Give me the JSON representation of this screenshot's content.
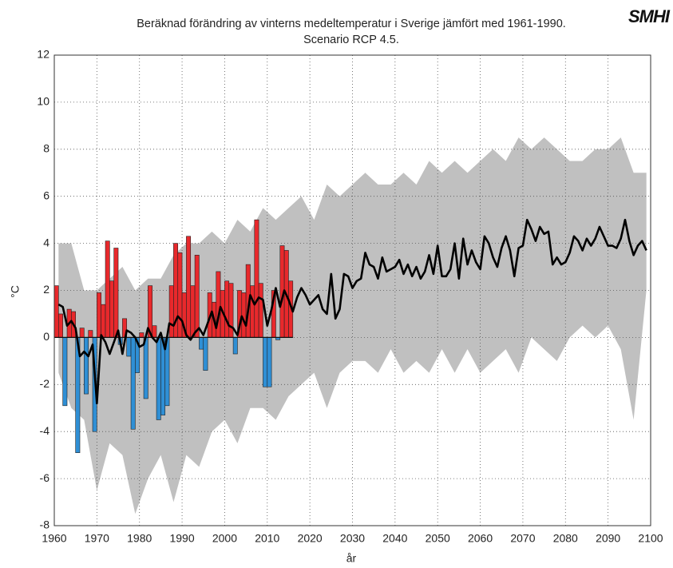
{
  "chart_data": {
    "type": "bar",
    "title": "Beräknad förändring av vinterns medeltemperatur i Sverige jämfört med 1961-1990.",
    "subtitle": "Scenario RCP 4.5.",
    "logo": "SMHI",
    "xlabel": "år",
    "ylabel": "°C",
    "xlim": [
      1960,
      2100
    ],
    "xticks": [
      1960,
      1970,
      1980,
      1990,
      2000,
      2010,
      2020,
      2030,
      2040,
      2050,
      2060,
      2070,
      2080,
      2090,
      2100
    ],
    "ylim": [
      -8,
      12
    ],
    "yticks": [
      -8,
      -6,
      -4,
      -2,
      0,
      2,
      4,
      6,
      8,
      10,
      12
    ],
    "grid": true,
    "bars": {
      "positive_color": "#e8292c",
      "negative_color": "#2f8fd5",
      "x": [
        1961,
        1962,
        1963,
        1964,
        1965,
        1966,
        1967,
        1968,
        1969,
        1970,
        1971,
        1972,
        1973,
        1974,
        1975,
        1976,
        1977,
        1978,
        1979,
        1980,
        1981,
        1982,
        1983,
        1984,
        1985,
        1986,
        1987,
        1988,
        1989,
        1990,
        1991,
        1992,
        1993,
        1994,
        1995,
        1996,
        1997,
        1998,
        1999,
        2000,
        2001,
        2002,
        2003,
        2004,
        2005,
        2006,
        2007,
        2008,
        2009,
        2010,
        2011,
        2012,
        2013,
        2014,
        2015,
        2016
      ],
      "values": [
        2.2,
        1.0,
        -2.9,
        1.2,
        1.1,
        -4.9,
        0.4,
        -2.4,
        0.3,
        -4.0,
        1.9,
        1.4,
        4.1,
        2.4,
        3.8,
        -0.3,
        0.8,
        -0.8,
        -3.9,
        -1.5,
        0.2,
        -2.6,
        2.2,
        0.5,
        -3.5,
        -3.3,
        -2.9,
        2.2,
        4.0,
        3.6,
        1.9,
        4.3,
        2.2,
        3.5,
        -0.5,
        -1.4,
        1.9,
        1.5,
        2.8,
        2.0,
        2.4,
        2.3,
        -0.7,
        2.0,
        1.9,
        3.1,
        2.2,
        5.0,
        2.3,
        -2.1,
        -2.1,
        2.0,
        -0.1,
        3.9,
        3.7,
        2.4
      ]
    },
    "band": {
      "color": "#c0c0c0",
      "x": [
        1961,
        1964,
        1967,
        1970,
        1973,
        1976,
        1979,
        1982,
        1985,
        1988,
        1991,
        1994,
        1997,
        2000,
        2003,
        2006,
        2009,
        2012,
        2015,
        2018,
        2021,
        2024,
        2027,
        2030,
        2033,
        2036,
        2039,
        2042,
        2045,
        2048,
        2051,
        2054,
        2057,
        2060,
        2063,
        2066,
        2069,
        2072,
        2075,
        2078,
        2081,
        2084,
        2087,
        2090,
        2093,
        2096,
        2099
      ],
      "upper": [
        4.0,
        4.0,
        2.0,
        2.0,
        2.5,
        3.0,
        2.0,
        2.5,
        2.5,
        3.5,
        4.0,
        4.0,
        4.5,
        4.0,
        5.0,
        4.5,
        5.5,
        5.0,
        5.5,
        6.0,
        5.0,
        6.5,
        6.0,
        6.5,
        7.0,
        6.5,
        6.5,
        7.0,
        6.5,
        7.5,
        7.0,
        7.5,
        7.0,
        7.5,
        8.0,
        7.5,
        8.5,
        8.0,
        8.5,
        8.0,
        7.5,
        7.5,
        8.0,
        8.0,
        8.5,
        7.0,
        7.0
      ],
      "lower": [
        -1.5,
        -3.0,
        -3.5,
        -6.5,
        -4.5,
        -5.0,
        -7.5,
        -6.0,
        -5.0,
        -7.0,
        -5.0,
        -5.5,
        -4.0,
        -3.5,
        -4.5,
        -3.0,
        -3.0,
        -3.5,
        -2.5,
        -2.0,
        -1.5,
        -3.0,
        -1.5,
        -1.0,
        -1.0,
        -1.5,
        -0.5,
        -1.5,
        -1.0,
        -1.5,
        -0.5,
        -1.5,
        -0.5,
        -1.5,
        -1.0,
        -0.5,
        -1.5,
        0.0,
        -0.5,
        -1.0,
        0.0,
        0.5,
        0.0,
        0.5,
        -0.5,
        -3.5,
        2.0
      ]
    },
    "line": {
      "color": "#000000",
      "x": [
        1961,
        1962,
        1963,
        1964,
        1965,
        1966,
        1967,
        1968,
        1969,
        1970,
        1971,
        1972,
        1973,
        1974,
        1975,
        1976,
        1977,
        1978,
        1979,
        1980,
        1981,
        1982,
        1983,
        1984,
        1985,
        1986,
        1987,
        1988,
        1989,
        1990,
        1991,
        1992,
        1993,
        1994,
        1995,
        1996,
        1997,
        1998,
        1999,
        2000,
        2001,
        2002,
        2003,
        2004,
        2005,
        2006,
        2007,
        2008,
        2009,
        2010,
        2011,
        2012,
        2013,
        2014,
        2015,
        2016,
        2017,
        2018,
        2019,
        2020,
        2021,
        2022,
        2023,
        2024,
        2025,
        2026,
        2027,
        2028,
        2029,
        2030,
        2031,
        2032,
        2033,
        2034,
        2035,
        2036,
        2037,
        2038,
        2039,
        2040,
        2041,
        2042,
        2043,
        2044,
        2045,
        2046,
        2047,
        2048,
        2049,
        2050,
        2051,
        2052,
        2053,
        2054,
        2055,
        2056,
        2057,
        2058,
        2059,
        2060,
        2061,
        2062,
        2063,
        2064,
        2065,
        2066,
        2067,
        2068,
        2069,
        2070,
        2071,
        2072,
        2073,
        2074,
        2075,
        2076,
        2077,
        2078,
        2079,
        2080,
        2081,
        2082,
        2083,
        2084,
        2085,
        2086,
        2087,
        2088,
        2089,
        2090,
        2091,
        2092,
        2093,
        2094,
        2095,
        2096,
        2097,
        2098,
        2099
      ],
      "values": [
        1.4,
        1.3,
        0.5,
        0.7,
        0.4,
        -0.8,
        -0.6,
        -0.8,
        -0.3,
        -2.8,
        0.1,
        -0.2,
        -0.7,
        -0.2,
        0.3,
        -0.7,
        0.3,
        0.2,
        0.0,
        -0.4,
        -0.3,
        0.4,
        0.0,
        -0.2,
        0.2,
        -0.5,
        0.6,
        0.5,
        0.9,
        0.7,
        0.1,
        -0.1,
        0.2,
        0.4,
        0.1,
        0.6,
        1.1,
        0.4,
        1.3,
        0.9,
        0.5,
        0.4,
        0.1,
        0.9,
        0.5,
        1.8,
        1.4,
        1.7,
        1.6,
        0.5,
        1.2,
        2.1,
        1.3,
        2.0,
        1.6,
        1.1,
        1.7,
        2.1,
        1.8,
        1.4,
        1.6,
        1.8,
        1.2,
        1.0,
        2.7,
        0.8,
        1.2,
        2.7,
        2.6,
        2.1,
        2.4,
        2.5,
        3.6,
        3.1,
        3.0,
        2.5,
        3.4,
        2.8,
        2.9,
        3.0,
        3.3,
        2.7,
        3.1,
        2.6,
        3.0,
        2.5,
        2.8,
        3.5,
        2.7,
        3.9,
        2.6,
        2.6,
        2.9,
        4.0,
        2.5,
        4.2,
        3.1,
        3.7,
        3.2,
        2.9,
        4.3,
        4.0,
        3.4,
        3.0,
        3.8,
        4.3,
        3.7,
        2.6,
        3.8,
        3.9,
        5.0,
        4.6,
        4.1,
        4.7,
        4.4,
        4.5,
        3.1,
        3.4,
        3.1,
        3.2,
        3.6,
        4.3,
        4.1,
        3.7,
        4.2,
        3.9,
        4.2,
        4.7,
        4.3,
        3.9,
        3.9,
        3.8,
        4.2,
        5.0,
        4.1,
        3.5,
        3.9,
        4.1,
        3.7
      ]
    }
  }
}
